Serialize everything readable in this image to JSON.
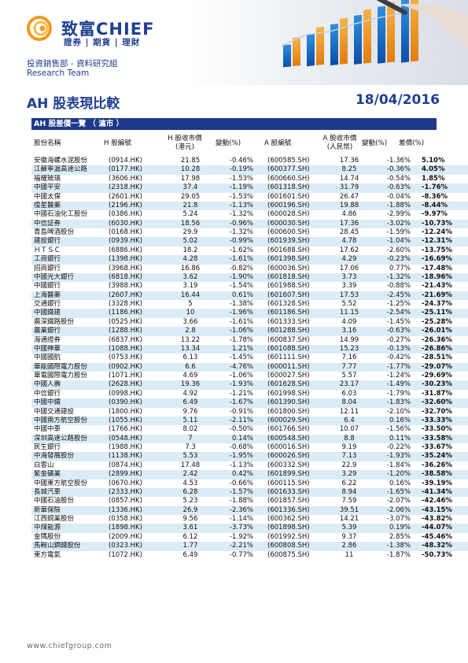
{
  "header": {
    "brand": "致富CHIEF",
    "brand_sub": "證券 | 期貨 | 理財",
    "department": "投資銷售部 - 資料研究組",
    "team": "Research Team"
  },
  "report": {
    "title": "AH 股表現比較",
    "date": "18/04/2016"
  },
  "table": {
    "section_title": "AH 股差價一覽 （ 滬市 ）",
    "columns": {
      "name": "股份名稱",
      "h_code": "H 股編號",
      "h_price_l1": "H 股收市價",
      "h_price_l2": "(港元)",
      "h_change": "變動(%)",
      "a_code": "A 股編號",
      "a_price_l1": "A 股收市價",
      "a_price_l2": "(人民幣)",
      "a_change": "變動(%)",
      "premium": "差價(%)"
    },
    "rows": [
      [
        "安徽海螺水泥股份",
        "(0914.HK)",
        "21.85",
        "-0.46%",
        "(600585.SH)",
        "17.36",
        "-1.36%",
        "5.10%"
      ],
      [
        "江蘇寧滬高速公路",
        "(0177.HK)",
        "10.28",
        "-0.19%",
        "(600377.SH)",
        "8.25",
        "-0.36%",
        "4.05%"
      ],
      [
        "福耀玻璃",
        "(3606.HK)",
        "17.98",
        "-1.53%",
        "(600660.SH)",
        "14.74",
        "-0.54%",
        "1.85%"
      ],
      [
        "中國平安",
        "(2318.HK)",
        "37.4",
        "-1.19%",
        "(601318.SH)",
        "31.79",
        "-0.63%",
        "-1.76%"
      ],
      [
        "中國太保",
        "(2601.HK)",
        "29.05",
        "-1.53%",
        "(601601.SH)",
        "26.47",
        "-0.04%",
        "-8.36%"
      ],
      [
        "復星醫藥",
        "(2196.HK)",
        "21.8",
        "-1.13%",
        "(600196.SH)",
        "19.88",
        "-1.88%",
        "-8.44%"
      ],
      [
        "中國石油化工股份",
        "(0386.HK)",
        "5.24",
        "-1.32%",
        "(600028.SH)",
        "4.86",
        "-2.99%",
        "-9.97%"
      ],
      [
        "中信証券",
        "(6030.HK)",
        "18.56",
        "-0.96%",
        "(600030.SH)",
        "17.36",
        "-3.02%",
        "-10.73%"
      ],
      [
        "青島啤酒股份",
        "(0168.HK)",
        "29.9",
        "-1.32%",
        "(600600.SH)",
        "28.45",
        "-1.59%",
        "-12.24%"
      ],
      [
        "建設銀行",
        "(0939.HK)",
        "5.02",
        "-0.99%",
        "(601939.SH)",
        "4.78",
        "-1.04%",
        "-12.31%"
      ],
      [
        "ＨＴＳＣ",
        "(6886.HK)",
        "18.2",
        "-1.62%",
        "(601688.SH)",
        "17.62",
        "-2.60%",
        "-13.75%"
      ],
      [
        "工商銀行",
        "(1398.HK)",
        "4.28",
        "-1.61%",
        "(601398.SH)",
        "4.29",
        "-0.23%",
        "-16.69%"
      ],
      [
        "招商銀行",
        "(3968.HK)",
        "16.86",
        "-0.82%",
        "(600036.SH)",
        "17.06",
        "0.77%",
        "-17.48%"
      ],
      [
        "中國光大銀行",
        "(6818.HK)",
        "3.62",
        "-1.90%",
        "(601818.SH)",
        "3.73",
        "-1.32%",
        "-18.96%"
      ],
      [
        "中國銀行",
        "(3988.HK)",
        "3.19",
        "-1.54%",
        "(601988.SH)",
        "3.39",
        "-0.88%",
        "-21.43%"
      ],
      [
        "上海醫藥",
        "(2607.HK)",
        "16.44",
        "0.61%",
        "(601607.SH)",
        "17.53",
        "-2.45%",
        "-21.69%"
      ],
      [
        "交通銀行",
        "(3328.HK)",
        "5",
        "-1.38%",
        "(601328.SH)",
        "5.52",
        "-1.25%",
        "-24.37%"
      ],
      [
        "中國鐵建",
        "(1186.HK)",
        "10",
        "-1.96%",
        "(601186.SH)",
        "11.15",
        "-2.54%",
        "-25.11%"
      ],
      [
        "廣深鐵路股份",
        "(0525.HK)",
        "3.66",
        "-1.61%",
        "(601333.SH)",
        "4.09",
        "-1.45%",
        "-25.28%"
      ],
      [
        "農業銀行",
        "(1288.HK)",
        "2.8",
        "-1.06%",
        "(601288.SH)",
        "3.16",
        "-0.63%",
        "-26.01%"
      ],
      [
        "海通證券",
        "(6837.HK)",
        "13.22",
        "-1.78%",
        "(600837.SH)",
        "14.99",
        "-0.27%",
        "-26.36%"
      ],
      [
        "中國神華",
        "(1088.HK)",
        "13.34",
        "1.21%",
        "(601088.SH)",
        "15.23",
        "-0.13%",
        "-26.86%"
      ],
      [
        "中國國航",
        "(0753.HK)",
        "6.13",
        "-1.45%",
        "(601111.SH)",
        "7.16",
        "-0.42%",
        "-28.51%"
      ],
      [
        "華能國際電力股份",
        "(0902.HK)",
        "6.6",
        "-4.76%",
        "(600011.SH)",
        "7.77",
        "-1.77%",
        "-29.07%"
      ],
      [
        "華電國際電力股份",
        "(1071.HK)",
        "4.69",
        "-1.06%",
        "(600027.SH)",
        "5.57",
        "-1.24%",
        "-29.69%"
      ],
      [
        "中國人壽",
        "(2628.HK)",
        "19.36",
        "-1.93%",
        "(601628.SH)",
        "23.17",
        "-1.49%",
        "-30.23%"
      ],
      [
        "中信銀行",
        "(0998.HK)",
        "4.92",
        "-1.21%",
        "(601998.SH)",
        "6.03",
        "-1.79%",
        "-31.87%"
      ],
      [
        "中國中鐵",
        "(0390.HK)",
        "6.49",
        "-1.67%",
        "(601390.SH)",
        "8.04",
        "-1.83%",
        "-32.60%"
      ],
      [
        "中國交通建設",
        "(1800.HK)",
        "9.76",
        "-0.91%",
        "(601800.SH)",
        "12.11",
        "-2.10%",
        "-32.70%"
      ],
      [
        "中國南方航空股份",
        "(1055.HK)",
        "5.11",
        "-2.11%",
        "(600029.SH)",
        "6.4",
        "0.16%",
        "-33.33%"
      ],
      [
        "中國中車",
        "(1766.HK)",
        "8.02",
        "-0.50%",
        "(601766.SH)",
        "10.07",
        "-1.56%",
        "-33.50%"
      ],
      [
        "深圳高速公路股份",
        "(0548.HK)",
        "7",
        "0.14%",
        "(600548.SH)",
        "8.8",
        "0.11%",
        "-33.58%"
      ],
      [
        "民生銀行",
        "(1988.HK)",
        "7.3",
        "-0.68%",
        "(600016.SH)",
        "9.19",
        "-0.22%",
        "-33.67%"
      ],
      [
        "中海發展股份",
        "(1138.HK)",
        "5.53",
        "-1.95%",
        "(600026.SH)",
        "7.13",
        "-1.93%",
        "-35.24%"
      ],
      [
        "白雲山",
        "(0874.HK)",
        "17.48",
        "-1.13%",
        "(600332.SH)",
        "22.9",
        "-1.84%",
        "-36.26%"
      ],
      [
        "紫金礦業",
        "(2899.HK)",
        "2.42",
        "0.42%",
        "(601899.SH)",
        "3.29",
        "-1.20%",
        "-38.58%"
      ],
      [
        "中國東方航空股份",
        "(0670.HK)",
        "4.53",
        "-0.66%",
        "(600115.SH)",
        "6.22",
        "0.16%",
        "-39.19%"
      ],
      [
        "長城汽車",
        "(2333.HK)",
        "6.28",
        "-1.57%",
        "(601633.SH)",
        "8.94",
        "-1.65%",
        "-41.34%"
      ],
      [
        "中國石油股份",
        "(0857.HK)",
        "5.23",
        "-1.88%",
        "(601857.SH)",
        "7.59",
        "-2.07%",
        "-42.46%"
      ],
      [
        "新華保險",
        "(1336.HK)",
        "26.9",
        "-2.36%",
        "(601336.SH)",
        "39.51",
        "-2.06%",
        "-43.15%"
      ],
      [
        "江西銅業股份",
        "(0358.HK)",
        "9.56",
        "-1.14%",
        "(600362.SH)",
        "14.21",
        "-3.07%",
        "-43.82%"
      ],
      [
        "中煤能源",
        "(1898.HK)",
        "3.61",
        "-3.73%",
        "(601898.SH)",
        "5.39",
        "0.19%",
        "-44.07%"
      ],
      [
        "金隅股份",
        "(2009.HK)",
        "6.12",
        "-1.92%",
        "(601992.SH)",
        "9.37",
        "2.85%",
        "-45.46%"
      ],
      [
        "馬鞍山鋼鐵股份",
        "(0323.HK)",
        "1.77",
        "-2.21%",
        "(600808.SH)",
        "2.86",
        "-1.38%",
        "-48.32%"
      ],
      [
        "東方電氣",
        "(1072.HK)",
        "6.49",
        "-0.77%",
        "(600875.SH)",
        "11",
        "-1.87%",
        "-50.73%"
      ]
    ]
  },
  "footer": {
    "website": "www.chiefgroup.com"
  },
  "colors": {
    "brand_blue": "#1f3f8f",
    "header_bar": "#1d3a8a",
    "row_alt": "#dcecf6",
    "negative": "#e31b23",
    "logo_orange": "#f29a1f"
  }
}
